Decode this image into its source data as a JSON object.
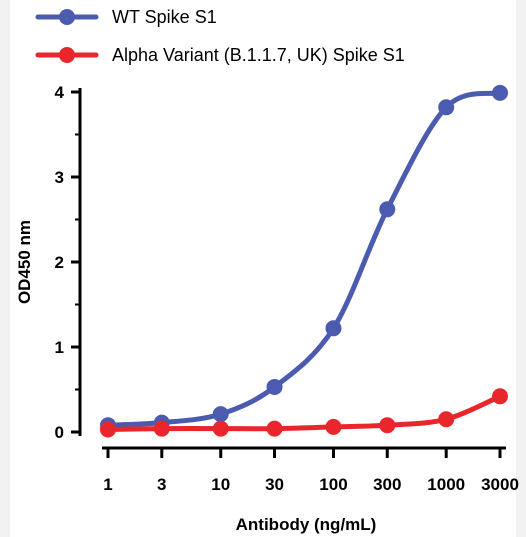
{
  "chart_data": {
    "type": "line",
    "x_scale": "log",
    "xlabel": "Antibody (ng/mL)",
    "ylabel": "OD450 nm",
    "xticks": [
      "1",
      "3",
      "10",
      "30",
      "100",
      "300",
      "1000",
      "3000"
    ],
    "yticks": [
      "0",
      "1",
      "2",
      "3",
      "4"
    ],
    "ylim": [
      0,
      4
    ],
    "xlim": [
      1,
      3000
    ],
    "grid": false,
    "legend_position": "top-left",
    "x": [
      1,
      3,
      10,
      30,
      100,
      300,
      1000,
      3000
    ],
    "series": [
      {
        "name": "WT Spike S1",
        "color": "#4a5bb0",
        "values": [
          0.08,
          0.11,
          0.21,
          0.53,
          1.22,
          2.62,
          3.82,
          3.99
        ]
      },
      {
        "name": "Alpha Variant (B.1.1.7, UK) Spike S1",
        "color": "#e8262c",
        "values": [
          0.03,
          0.04,
          0.04,
          0.04,
          0.06,
          0.08,
          0.15,
          0.42
        ]
      }
    ]
  }
}
